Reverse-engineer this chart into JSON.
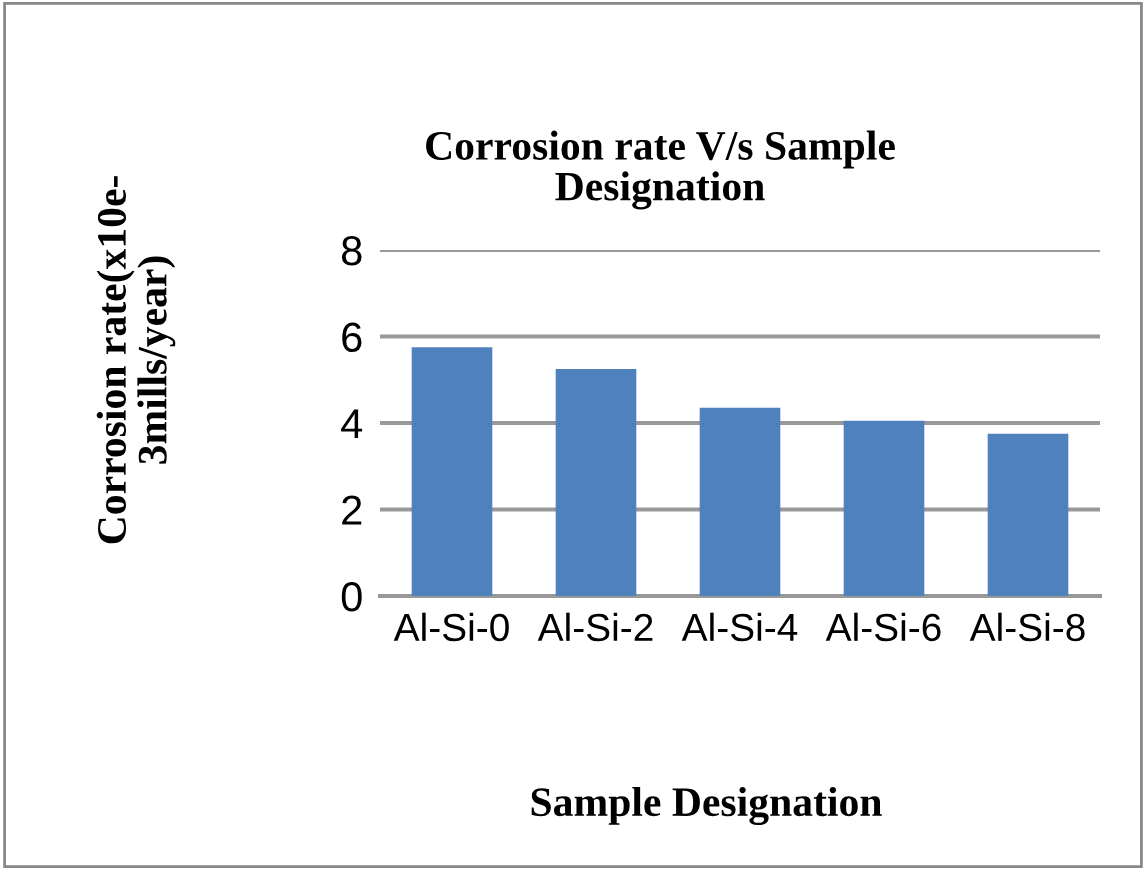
{
  "chart_data": {
    "type": "bar",
    "title": "Corrosion rate V/s Sample\nDesignation",
    "xlabel": "Sample Designation",
    "ylabel": "Corrosion rate(x10e-\n3mills/year)",
    "categories": [
      "Al-Si-0",
      "Al-Si-2",
      "Al-Si-4",
      "Al-Si-6",
      "Al-Si-8"
    ],
    "values": [
      5.75,
      5.25,
      4.35,
      4.05,
      3.75
    ],
    "color": "#4f81bd",
    "ylim": [
      0,
      8
    ],
    "yticks": [
      0,
      2,
      4,
      6,
      8
    ],
    "grid": "y"
  }
}
